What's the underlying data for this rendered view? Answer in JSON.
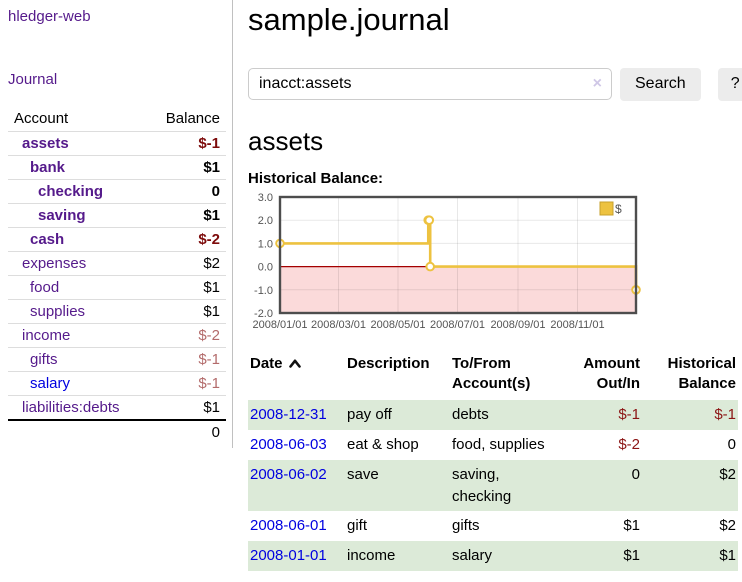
{
  "app": {
    "title": "hledger-web",
    "nav_journal": "Journal"
  },
  "sidebar": {
    "accounts_header": {
      "account": "Account",
      "balance": "Balance"
    },
    "accounts": [
      {
        "name": "assets",
        "depth": 1,
        "bold": true,
        "link": "purple",
        "balance": "$-1"
      },
      {
        "name": "bank",
        "depth": 2,
        "bold": true,
        "link": "purple",
        "balance": "$1"
      },
      {
        "name": "checking",
        "depth": 3,
        "bold": true,
        "link": "purple",
        "balance": "0"
      },
      {
        "name": "saving",
        "depth": 3,
        "bold": true,
        "link": "purple",
        "balance": "$1"
      },
      {
        "name": "cash",
        "depth": 2,
        "bold": true,
        "link": "purple",
        "balance": "$-2"
      },
      {
        "name": "expenses",
        "depth": 1,
        "bold": false,
        "link": "purple",
        "balance": "$2"
      },
      {
        "name": "food",
        "depth": 2,
        "bold": false,
        "link": "purple",
        "balance": "$1"
      },
      {
        "name": "supplies",
        "depth": 2,
        "bold": false,
        "link": "purple",
        "balance": "$1"
      },
      {
        "name": "income",
        "depth": 1,
        "bold": false,
        "link": "purple",
        "balance": "$-2"
      },
      {
        "name": "gifts",
        "depth": 2,
        "bold": false,
        "link": "purple",
        "balance": "$-1"
      },
      {
        "name": "salary",
        "depth": 2,
        "bold": false,
        "link": "blue",
        "balance": "$-1"
      },
      {
        "name": "liabilities:debts",
        "depth": 1,
        "bold": false,
        "link": "purple",
        "balance": "$1"
      }
    ],
    "total": "0"
  },
  "main": {
    "title": "sample.journal",
    "search": {
      "value": "inacct:assets",
      "clear_icon": "×",
      "search_label": "Search",
      "help_label": "?"
    },
    "account_heading": "assets",
    "chart_label": "Historical Balance:"
  },
  "chart_data": {
    "type": "line",
    "title": "Historical Balance",
    "step": true,
    "series": [
      {
        "name": "$",
        "color": "#edc240",
        "points": [
          [
            "2008-01-01",
            1
          ],
          [
            "2008-06-01",
            2
          ],
          [
            "2008-06-02",
            2
          ],
          [
            "2008-06-03",
            0
          ],
          [
            "2008-12-31",
            -1
          ]
        ]
      }
    ],
    "x_range": [
      "2008-01-01",
      "2008-12-31"
    ],
    "ylim": [
      -2,
      3
    ],
    "yticks": [
      3,
      2,
      1,
      0,
      -1,
      -2
    ],
    "xticks": [
      "2008/01/01",
      "2008/03/01",
      "2008/05/01",
      "2008/07/01",
      "2008/09/01",
      "2008/11/01"
    ],
    "grid": true,
    "legend_position": "top-right",
    "negative_region_color": "#fbdada",
    "zero_line_color": "#a40000",
    "legend_swatch_border": "#c7a02c"
  },
  "register": {
    "headers": [
      {
        "text": "Date",
        "sorted": "asc"
      },
      {
        "text": "Description"
      },
      {
        "text": "To/From\nAccount(s)"
      },
      {
        "text": "Amount\nOut/In",
        "align": "right"
      },
      {
        "text": "Historical\nBalance",
        "align": "right"
      }
    ],
    "rows": [
      {
        "date": "2008-12-31",
        "description": "pay off",
        "accounts": "debts",
        "amount": "$-1",
        "balance": "$-1"
      },
      {
        "date": "2008-06-03",
        "description": "eat & shop",
        "accounts": "food, supplies",
        "amount": "$-2",
        "balance": "0"
      },
      {
        "date": "2008-06-02",
        "description": "save",
        "accounts": "saving,\nchecking",
        "amount": "0",
        "balance": "$2"
      },
      {
        "date": "2008-06-01",
        "description": "gift",
        "accounts": "gifts",
        "amount": "$1",
        "balance": "$2"
      },
      {
        "date": "2008-01-01",
        "description": "income",
        "accounts": "salary",
        "amount": "$1",
        "balance": "$1"
      }
    ]
  },
  "colors": {
    "link_purple": "#551a8b",
    "link_blue": "#0000e0",
    "negative_strong": "#7d0b0b",
    "negative_soft": "#b36b6b",
    "negative_table": "#8b1414",
    "row_stripe_green": "#dcead8",
    "series_yellow": "#edc240",
    "chart_negative_region": "#fbdada",
    "chart_zero_line": "#a40000"
  }
}
